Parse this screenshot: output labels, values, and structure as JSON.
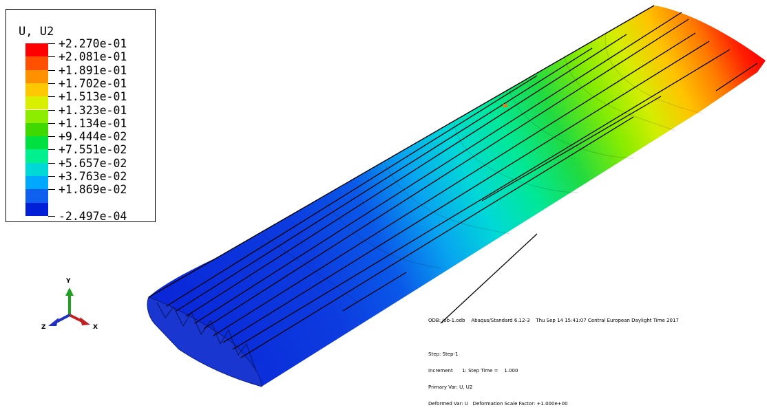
{
  "legend": {
    "title": "U, U2",
    "colors": [
      "#ff0000",
      "#ff5000",
      "#ff9000",
      "#ffc800",
      "#d8f000",
      "#8ced00",
      "#3fd800",
      "#00e040",
      "#00f090",
      "#00d8d8",
      "#00a8ff",
      "#1060f0",
      "#0020d8"
    ],
    "values": [
      "+2.270e-01",
      "+2.081e-01",
      "+1.891e-01",
      "+1.702e-01",
      "+1.513e-01",
      "+1.323e-01",
      "+1.134e-01",
      "+9.444e-02",
      "+7.551e-02",
      "+5.657e-02",
      "+3.763e-02",
      "+1.869e-02",
      "-2.497e-04"
    ]
  },
  "info": {
    "odb": "ODB: Job-1.odb    Abaqus/Standard 6.12-3    Thu Sep 14 15:41:07 Central European Daylight Time 2017",
    "step": "Step: Step-1",
    "increment": "Increment      1: Step Time =    1.000",
    "primary_var": "Primary Var: U, U2",
    "deformed_var": "Deformed Var: U   Deformation Scale Factor: +1.000e+00"
  },
  "triad": {
    "y_label": "Y",
    "x_label": "X",
    "z_label": "Z",
    "y_color": "#20a020",
    "x_color": "#c02020",
    "z_color": "#2030c0"
  }
}
